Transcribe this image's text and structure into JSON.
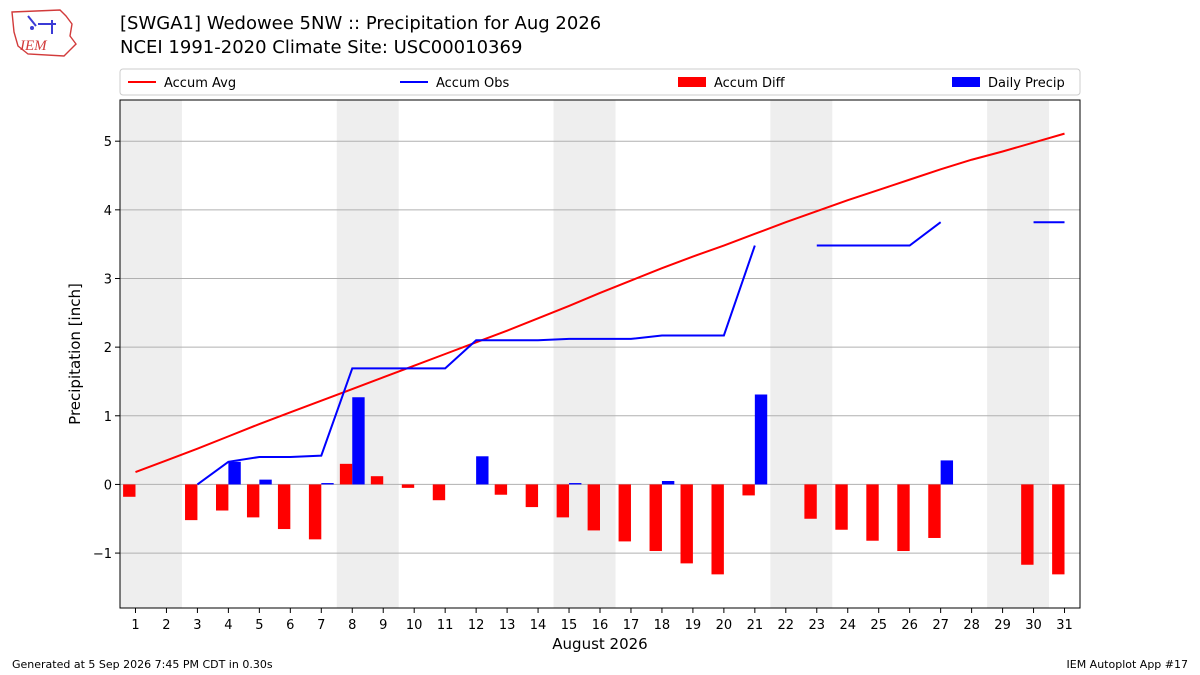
{
  "header": {
    "title": "[SWGA1] Wedowee 5NW :: Precipitation for Aug 2026",
    "subtitle": "NCEI 1991-2020 Climate Site: USC00010369",
    "logo_text": "IEM"
  },
  "footer": {
    "left": "Generated at 5 Sep 2026 7:45 PM CDT in 0.30s",
    "right": "IEM Autoplot App #17"
  },
  "colors": {
    "accum_avg": "#ff0000",
    "accum_obs": "#0000ff",
    "accum_diff": "#ff0000",
    "daily_precip": "#0000ff",
    "weekend_band": "#eeeeee",
    "grid": "#b0b0b0"
  },
  "chart_data": {
    "type": "bar",
    "xlabel": "August 2026",
    "ylabel": "Precipitation [inch]",
    "xlim": [
      0.5,
      31.5
    ],
    "ylim": [
      -1.8,
      5.6
    ],
    "yticks": [
      -1,
      0,
      1,
      2,
      3,
      4,
      5
    ],
    "ytick_labels": [
      "−1",
      "0",
      "1",
      "2",
      "3",
      "4",
      "5"
    ],
    "grid": "y",
    "legend_position": "top",
    "legend": [
      "Accum Avg",
      "Accum Obs",
      "Accum Diff",
      "Daily Precip"
    ],
    "days": [
      1,
      2,
      3,
      4,
      5,
      6,
      7,
      8,
      9,
      10,
      11,
      12,
      13,
      14,
      15,
      16,
      17,
      18,
      19,
      20,
      21,
      22,
      23,
      24,
      25,
      26,
      27,
      28,
      29,
      30,
      31
    ],
    "weekend_days": [
      1,
      2,
      8,
      9,
      15,
      16,
      22,
      23,
      29,
      30
    ],
    "series": [
      {
        "name": "Accum Avg",
        "kind": "line",
        "values": [
          0.18,
          0.35,
          0.52,
          0.7,
          0.88,
          1.05,
          1.22,
          1.39,
          1.56,
          1.73,
          1.9,
          2.07,
          2.24,
          2.42,
          2.6,
          2.79,
          2.97,
          3.15,
          3.32,
          3.48,
          3.65,
          3.82,
          3.98,
          4.14,
          4.29,
          4.44,
          4.59,
          4.73,
          4.85,
          4.98,
          5.11
        ]
      },
      {
        "name": "Accum Obs",
        "kind": "line",
        "values": [
          null,
          null,
          0.0,
          0.33,
          0.4,
          0.4,
          0.42,
          1.69,
          1.69,
          1.69,
          1.69,
          2.1,
          2.1,
          2.1,
          2.12,
          2.12,
          2.12,
          2.17,
          2.17,
          2.17,
          3.48,
          null,
          3.48,
          3.48,
          3.48,
          3.48,
          3.82,
          null,
          null,
          3.82,
          3.82
        ]
      },
      {
        "name": "Accum Diff",
        "kind": "bar",
        "values": [
          -0.18,
          null,
          -0.52,
          -0.38,
          -0.48,
          -0.65,
          -0.8,
          0.3,
          0.12,
          -0.05,
          -0.23,
          null,
          -0.15,
          -0.33,
          -0.48,
          -0.67,
          -0.83,
          -0.97,
          -1.15,
          -1.31,
          -0.16,
          null,
          -0.5,
          -0.66,
          -0.82,
          -0.97,
          -0.78,
          null,
          null,
          -1.17,
          -1.31
        ]
      },
      {
        "name": "Daily Precip",
        "kind": "bar",
        "values": [
          0,
          null,
          0,
          0.33,
          0.07,
          0,
          0.02,
          1.27,
          0,
          0,
          0,
          0.41,
          0,
          0,
          0.02,
          0,
          0,
          0.05,
          0,
          0,
          1.31,
          null,
          0,
          0,
          0,
          0,
          0.35,
          null,
          null,
          0,
          0
        ]
      }
    ]
  }
}
